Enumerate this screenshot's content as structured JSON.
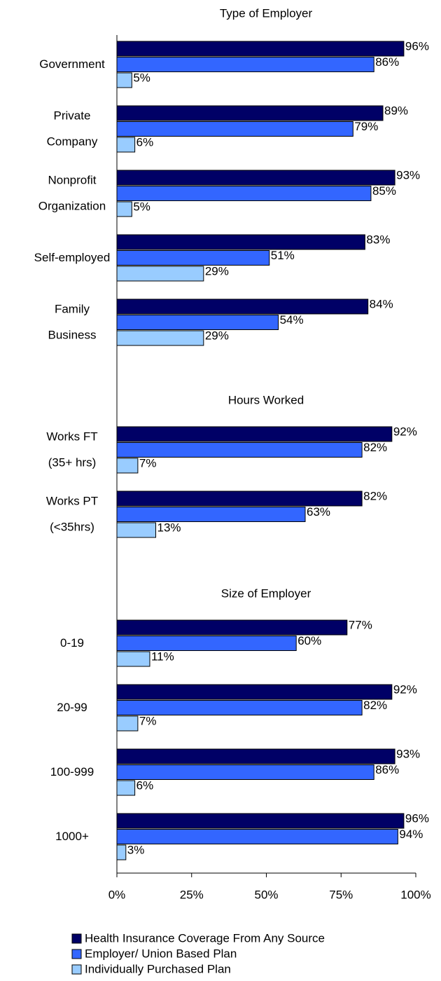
{
  "chart_data": {
    "type": "bar",
    "orientation": "horizontal",
    "xlim": [
      0,
      100
    ],
    "xticks": [
      {
        "value": 0,
        "label": "0%"
      },
      {
        "value": 25,
        "label": "25%"
      },
      {
        "value": 50,
        "label": "50%"
      },
      {
        "value": 75,
        "label": "75%"
      },
      {
        "value": 100,
        "label": "100%"
      }
    ],
    "sections": [
      {
        "title": "Type of Employer",
        "categories": [
          [
            "Government"
          ],
          [
            "Private",
            "Company"
          ],
          [
            "Nonprofit",
            "Organization"
          ],
          [
            "Self-employed"
          ],
          [
            "Family",
            "Business"
          ]
        ]
      },
      {
        "title": "Hours Worked",
        "categories": [
          [
            "Works FT",
            "(35+ hrs)"
          ],
          [
            "Works PT",
            "(<35hrs)"
          ]
        ]
      },
      {
        "title": "Size of Employer",
        "categories": [
          [
            "0-19"
          ],
          [
            "20-99"
          ],
          [
            "100-999"
          ],
          [
            "1000+"
          ]
        ]
      }
    ],
    "series": [
      {
        "name": "Health Insurance Coverage From Any Source",
        "color": "#000066",
        "values": [
          [
            96,
            89,
            93,
            83,
            84
          ],
          [
            92,
            82
          ],
          [
            77,
            92,
            93,
            96
          ]
        ],
        "value_labels": [
          [
            "96%",
            "89%",
            "93%",
            "83%",
            "84%"
          ],
          [
            "92%",
            "82%"
          ],
          [
            "77%",
            "92%",
            "93%",
            "96%"
          ]
        ]
      },
      {
        "name": "Employer/ Union Based Plan",
        "color": "#3366ff",
        "values": [
          [
            86,
            79,
            85,
            51,
            54
          ],
          [
            82,
            63
          ],
          [
            60,
            82,
            86,
            94
          ]
        ],
        "value_labels": [
          [
            "86%",
            "79%",
            "85%",
            "51%",
            "54%"
          ],
          [
            "82%",
            "63%"
          ],
          [
            "60%",
            "82%",
            "86%",
            "94%"
          ]
        ]
      },
      {
        "name": "Individually Purchased Plan",
        "color": "#99ccff",
        "values": [
          [
            5,
            6,
            5,
            29,
            29
          ],
          [
            7,
            13
          ],
          [
            11,
            7,
            6,
            3
          ]
        ],
        "value_labels": [
          [
            "5%",
            "6%",
            "5%",
            "29%",
            "29%"
          ],
          [
            "7%",
            "13%"
          ],
          [
            "11%",
            "7%",
            "6%",
            "3%"
          ]
        ]
      }
    ]
  }
}
